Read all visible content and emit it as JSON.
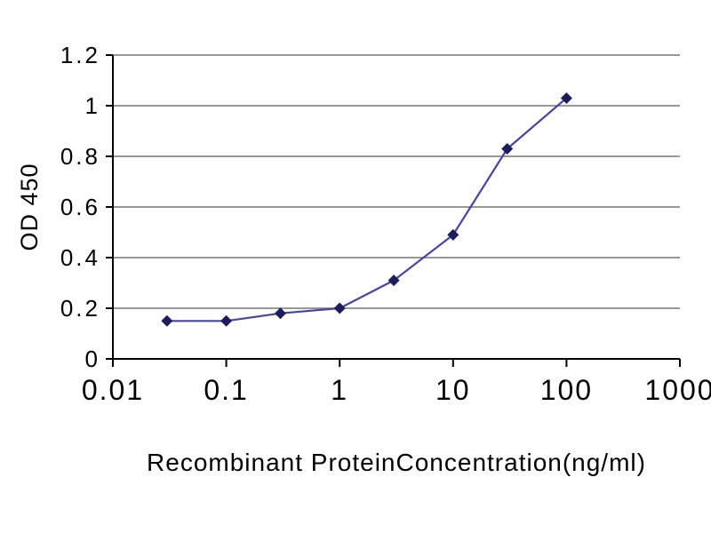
{
  "chart_data": {
    "type": "line",
    "title": "",
    "xlabel": "Recombinant ProteinConcentration(ng/ml)",
    "ylabel": "OD 450",
    "x_scale": "log10",
    "xlim": [
      0.01,
      1000
    ],
    "ylim": [
      0,
      1.2
    ],
    "xticks": [
      {
        "value": 0.01,
        "label": "0.01"
      },
      {
        "value": 0.1,
        "label": "0.1"
      },
      {
        "value": 1,
        "label": "1"
      },
      {
        "value": 10,
        "label": "10"
      },
      {
        "value": 100,
        "label": "100"
      },
      {
        "value": 1000,
        "label": "1000"
      }
    ],
    "yticks": [
      {
        "value": 0,
        "label": "0"
      },
      {
        "value": 0.2,
        "label": "0.2"
      },
      {
        "value": 0.4,
        "label": "0.4"
      },
      {
        "value": 0.6,
        "label": "0.6"
      },
      {
        "value": 0.8,
        "label": "0.8"
      },
      {
        "value": 1,
        "label": "1"
      },
      {
        "value": 1.2,
        "label": "1.2"
      }
    ],
    "series": [
      {
        "marker": "diamond",
        "line_color": "#4545a8",
        "marker_color": "#1d1d5e",
        "points": [
          {
            "x": 0.03,
            "y": 0.15
          },
          {
            "x": 0.1,
            "y": 0.15
          },
          {
            "x": 0.3,
            "y": 0.18
          },
          {
            "x": 1,
            "y": 0.2
          },
          {
            "x": 3,
            "y": 0.31
          },
          {
            "x": 10,
            "y": 0.49
          },
          {
            "x": 30,
            "y": 0.83
          },
          {
            "x": 100,
            "y": 1.03
          }
        ]
      }
    ],
    "grid": {
      "horizontal": true,
      "vertical": false,
      "color": "#757575"
    },
    "axis_color": "#000000",
    "background": "#ffffff"
  }
}
